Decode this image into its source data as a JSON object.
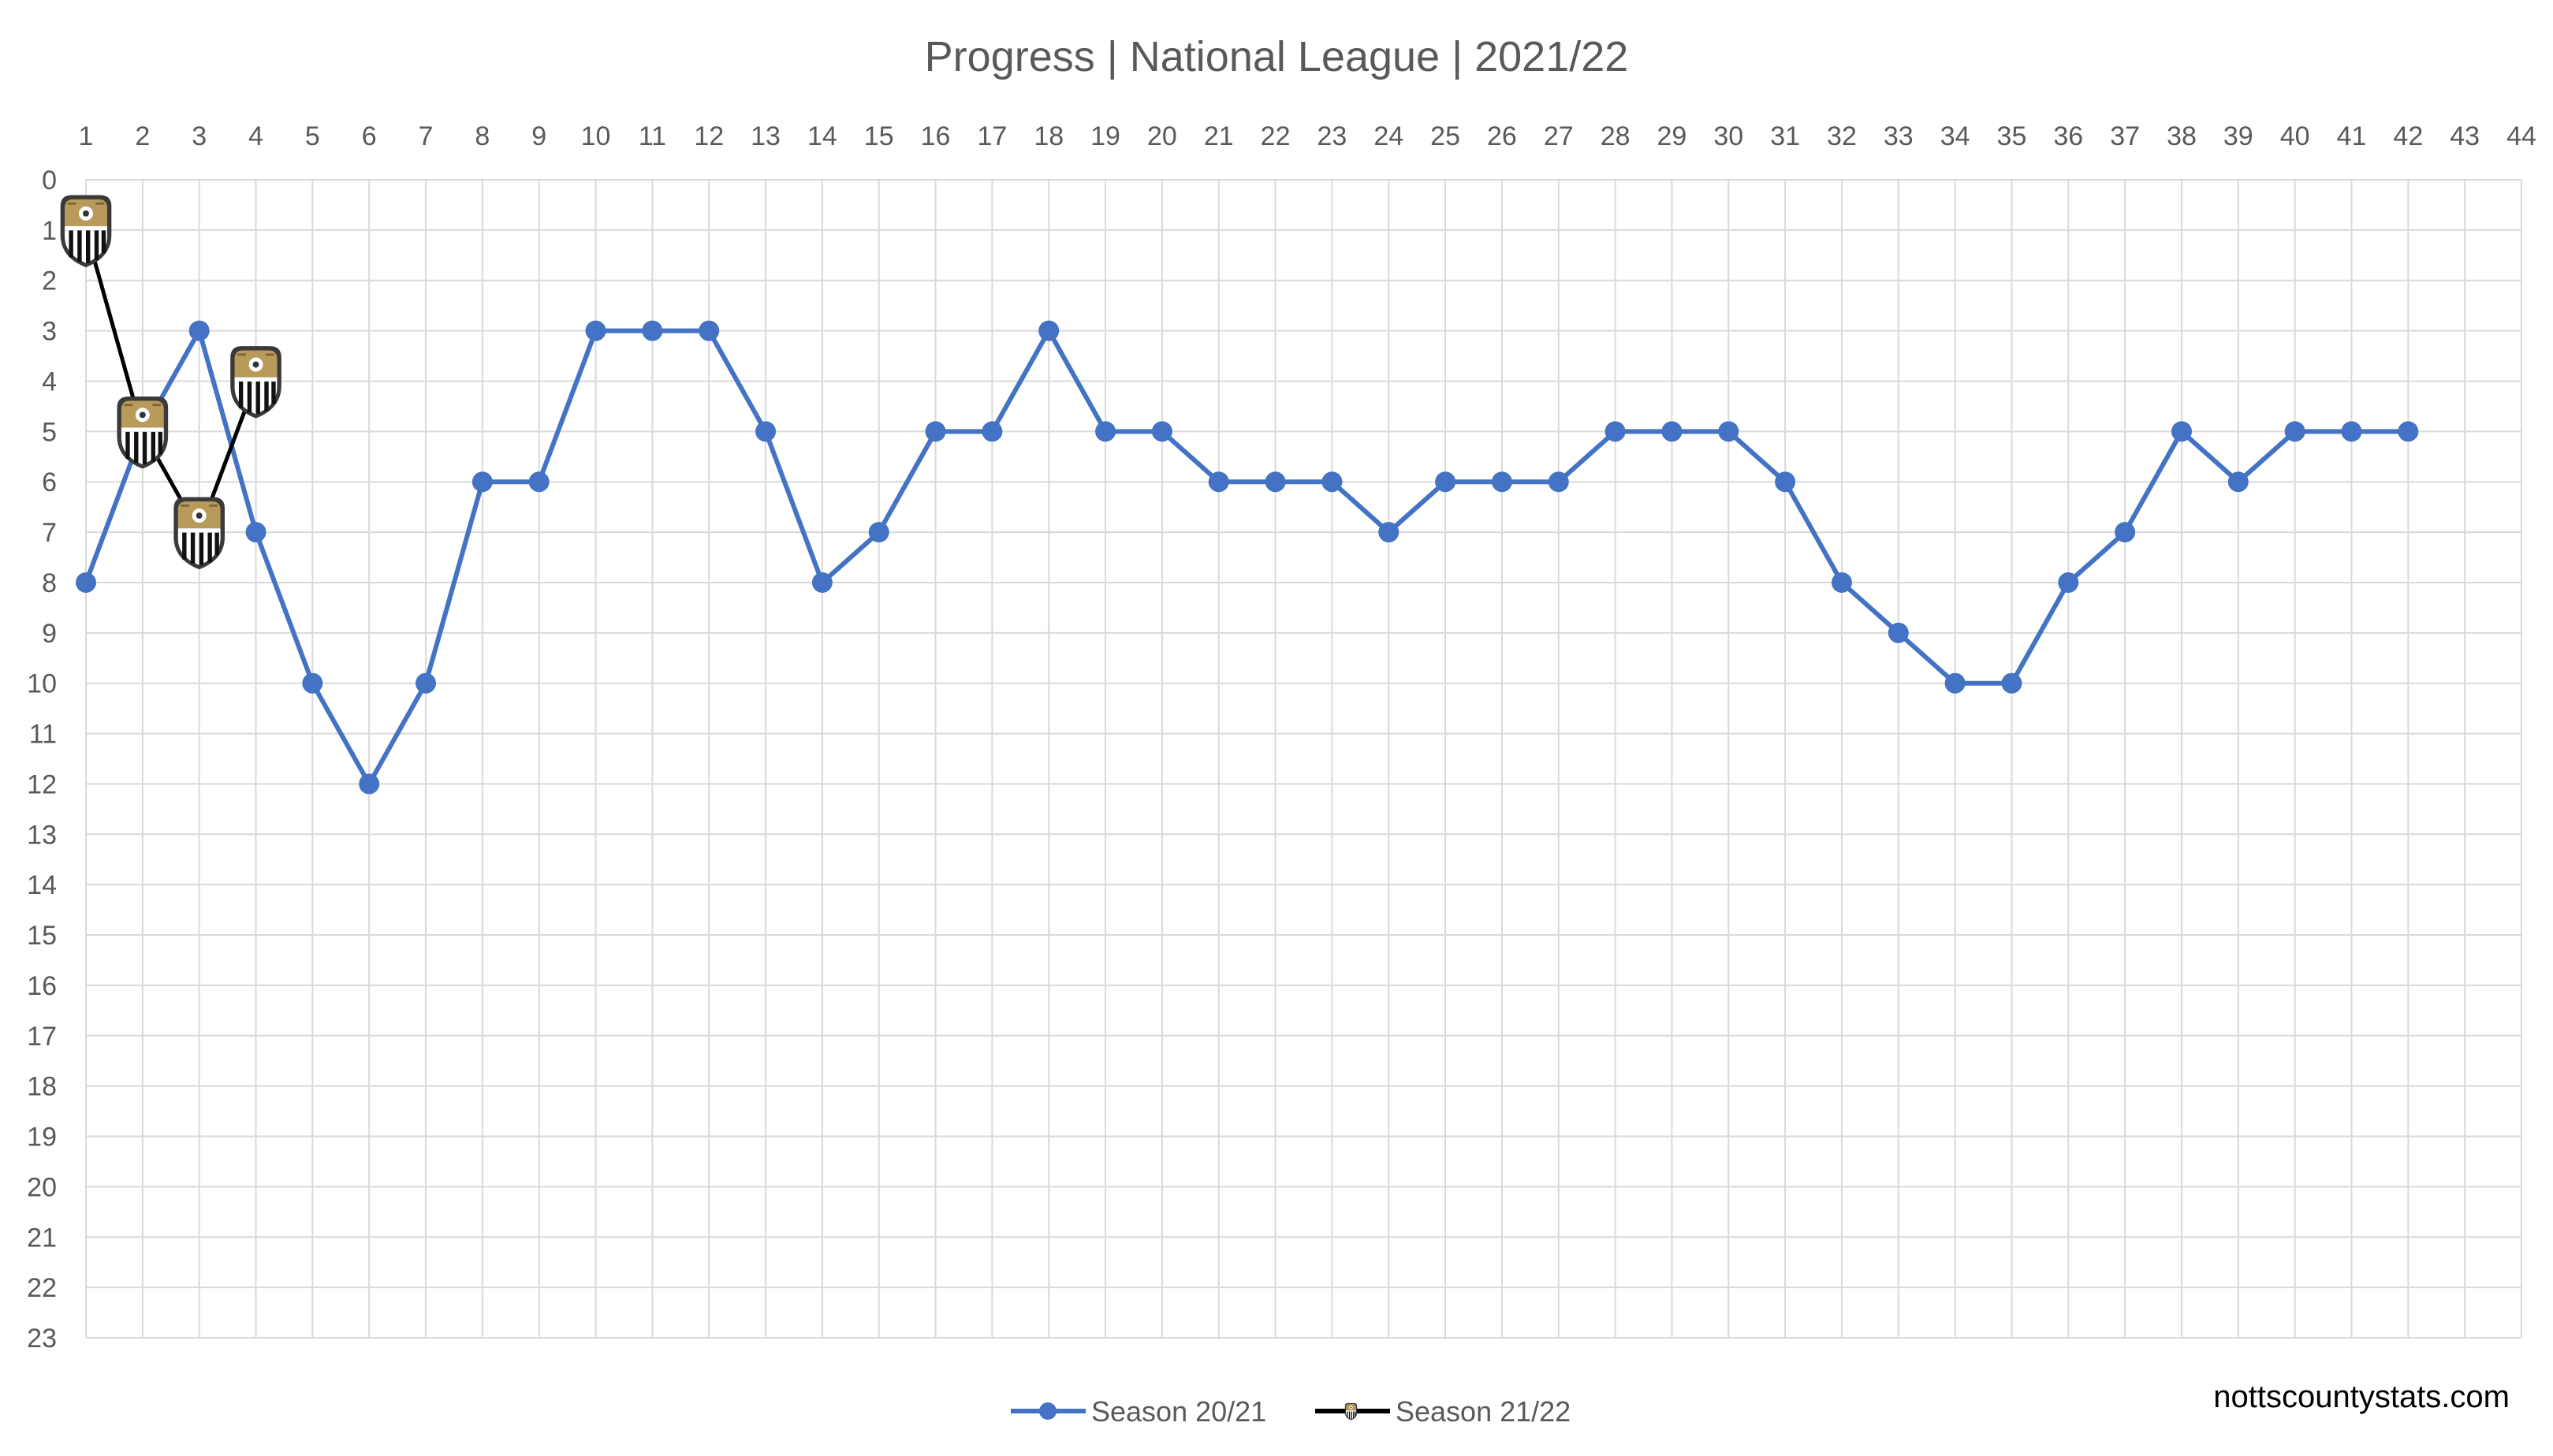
{
  "chart_data": {
    "type": "line",
    "title": "Progress | National League | 2021/22",
    "xlabel": "",
    "ylabel": "",
    "x_ticks": [
      1,
      2,
      3,
      4,
      5,
      6,
      7,
      8,
      9,
      10,
      11,
      12,
      13,
      14,
      15,
      16,
      17,
      18,
      19,
      20,
      21,
      22,
      23,
      24,
      25,
      26,
      27,
      28,
      29,
      30,
      31,
      32,
      33,
      34,
      35,
      36,
      37,
      38,
      39,
      40,
      41,
      42,
      43,
      44
    ],
    "y_ticks": [
      0,
      1,
      2,
      3,
      4,
      5,
      6,
      7,
      8,
      9,
      10,
      11,
      12,
      13,
      14,
      15,
      16,
      17,
      18,
      19,
      20,
      21,
      22,
      23
    ],
    "xlim": [
      1,
      44
    ],
    "ylim": [
      0,
      23
    ],
    "y_reversed": true,
    "x_axis_position": "top",
    "grid": true,
    "legend_position": "bottom",
    "series": [
      {
        "name": "Season 20/21",
        "color": "#4472C4",
        "marker": "circle",
        "x": [
          1,
          2,
          3,
          4,
          5,
          6,
          7,
          8,
          9,
          10,
          11,
          12,
          13,
          14,
          15,
          16,
          17,
          18,
          19,
          20,
          21,
          22,
          23,
          24,
          25,
          26,
          27,
          28,
          29,
          30,
          31,
          32,
          33,
          34,
          35,
          36,
          37,
          38,
          39,
          40,
          41,
          42
        ],
        "values": [
          8,
          5,
          3,
          7,
          10,
          12,
          10,
          6,
          6,
          3,
          3,
          3,
          5,
          8,
          7,
          5,
          5,
          3,
          5,
          5,
          6,
          6,
          6,
          7,
          6,
          6,
          6,
          5,
          5,
          5,
          6,
          8,
          9,
          10,
          10,
          8,
          7,
          5,
          6,
          5,
          5,
          5
        ]
      },
      {
        "name": "Season 21/22",
        "color": "#000000",
        "marker": "club-crest-icon",
        "x": [
          1,
          2,
          3,
          4
        ],
        "values": [
          1,
          5,
          7,
          4
        ]
      }
    ]
  },
  "footer": {
    "brand": "nottscountystats.com"
  }
}
